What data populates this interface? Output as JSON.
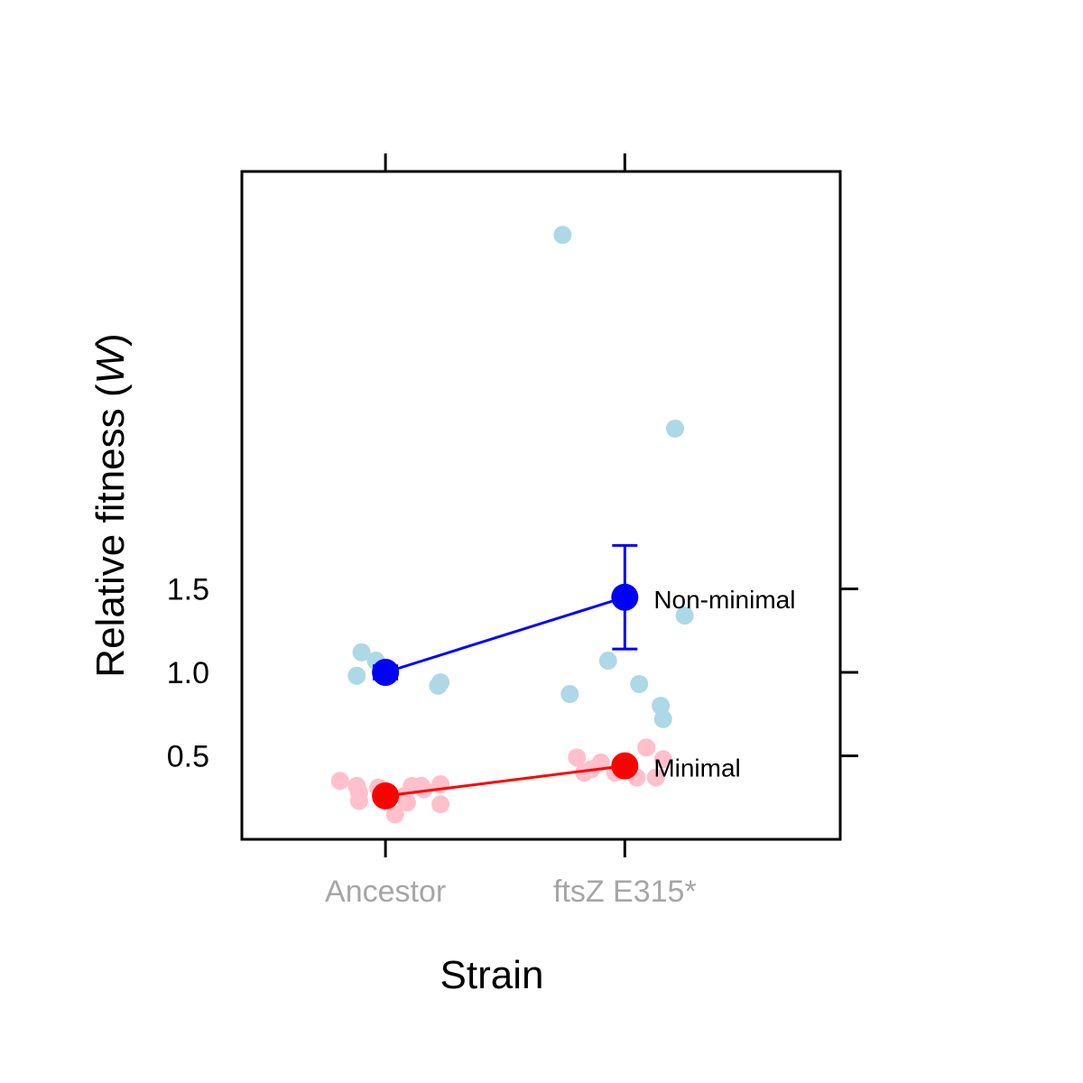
{
  "chart_data": {
    "type": "scatter",
    "xlabel": "Strain",
    "ylabel": "Relative fitness (",
    "ylabel_symbol": "W",
    "ylabel_close": ")",
    "categories": [
      "Ancestor",
      "ftsZ E315*"
    ],
    "xlim": [
      -0.6,
      1.9
    ],
    "ylim": [
      0.0,
      4.0
    ],
    "yticks": [
      0.5,
      1.0,
      1.5
    ],
    "ytick_labels": [
      "0.5",
      "1.0",
      "1.5"
    ],
    "grid": false,
    "category_label_color": "#a6a6a6",
    "series": [
      {
        "name": "Non-minimal",
        "mean_color": "#0000ff",
        "point_color": "#add8e6",
        "means": [
          {
            "x": 0,
            "y": 1.0,
            "lower": 0.96,
            "upper": 1.04
          },
          {
            "x": 1,
            "y": 1.45,
            "lower": 1.14,
            "upper": 1.76
          }
        ],
        "points": [
          {
            "x": -0.12,
            "y": 0.98
          },
          {
            "x": -0.1,
            "y": 1.12
          },
          {
            "x": -0.04,
            "y": 1.07
          },
          {
            "x": 0.0,
            "y": 1.0
          },
          {
            "x": 0.22,
            "y": 0.92
          },
          {
            "x": 0.23,
            "y": 0.94
          },
          {
            "x": 0.74,
            "y": 3.62
          },
          {
            "x": 0.77,
            "y": 0.87
          },
          {
            "x": 0.93,
            "y": 1.07
          },
          {
            "x": 1.06,
            "y": 0.93
          },
          {
            "x": 1.15,
            "y": 0.8
          },
          {
            "x": 1.16,
            "y": 0.72
          },
          {
            "x": 1.21,
            "y": 2.46
          },
          {
            "x": 1.25,
            "y": 1.34
          }
        ]
      },
      {
        "name": "Minimal",
        "mean_color": "#ff0000",
        "point_color": "#ffc0cb",
        "means": [
          {
            "x": 0,
            "y": 0.26,
            "lower": 0.24,
            "upper": 0.28
          },
          {
            "x": 1,
            "y": 0.44,
            "lower": 0.42,
            "upper": 0.46
          }
        ],
        "points": [
          {
            "x": -0.19,
            "y": 0.35
          },
          {
            "x": -0.12,
            "y": 0.32
          },
          {
            "x": -0.11,
            "y": 0.28
          },
          {
            "x": -0.11,
            "y": 0.23
          },
          {
            "x": -0.03,
            "y": 0.31
          },
          {
            "x": 0.01,
            "y": 0.24
          },
          {
            "x": 0.04,
            "y": 0.15
          },
          {
            "x": 0.08,
            "y": 0.26
          },
          {
            "x": 0.09,
            "y": 0.22
          },
          {
            "x": 0.11,
            "y": 0.32
          },
          {
            "x": 0.15,
            "y": 0.32
          },
          {
            "x": 0.16,
            "y": 0.3
          },
          {
            "x": 0.23,
            "y": 0.33
          },
          {
            "x": 0.23,
            "y": 0.21
          },
          {
            "x": 0.8,
            "y": 0.49
          },
          {
            "x": 0.83,
            "y": 0.4
          },
          {
            "x": 0.86,
            "y": 0.42
          },
          {
            "x": 0.9,
            "y": 0.46
          },
          {
            "x": 0.96,
            "y": 0.4
          },
          {
            "x": 1.05,
            "y": 0.37
          },
          {
            "x": 1.09,
            "y": 0.55
          },
          {
            "x": 1.13,
            "y": 0.37
          },
          {
            "x": 1.16,
            "y": 0.48
          }
        ]
      }
    ]
  }
}
